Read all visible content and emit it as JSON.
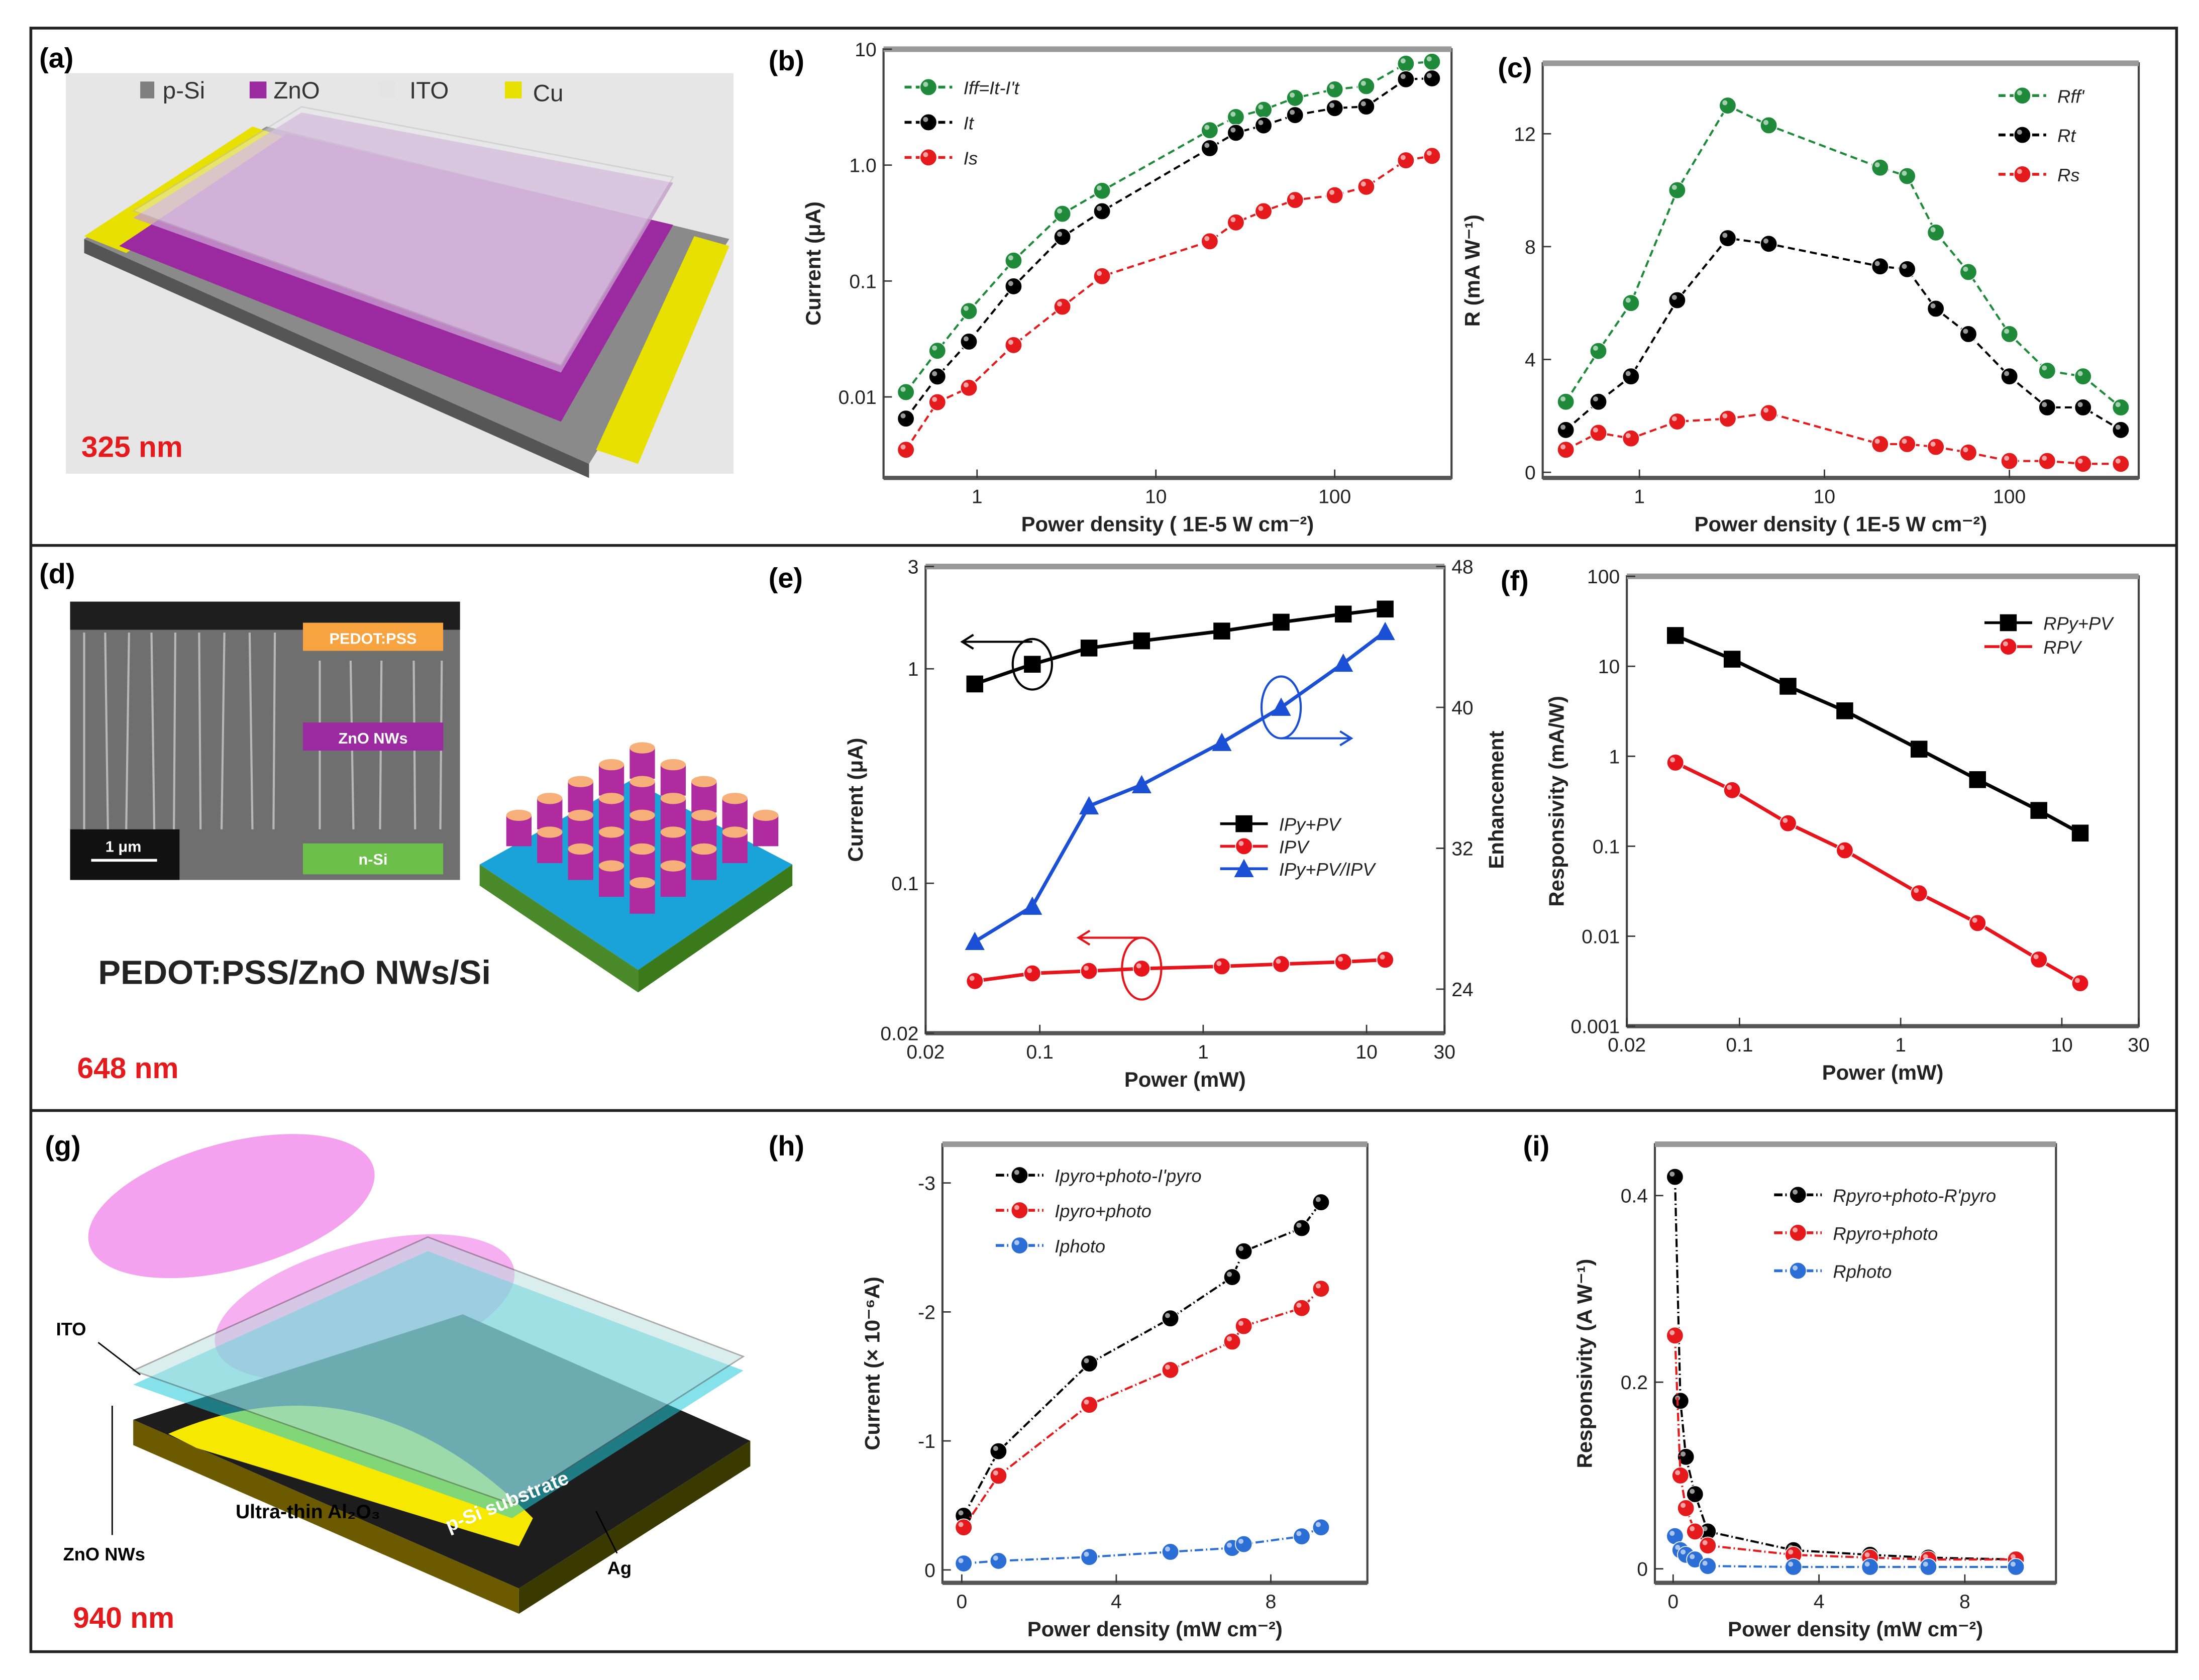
{
  "panels": {
    "a": {
      "label": "(a)",
      "legend": [
        "p-Si",
        "ZnO",
        "ITO",
        "Cu"
      ],
      "legend_colors": [
        "#7f7f7f",
        "#9b2aa0",
        "#e4e4e4",
        "#e8e000"
      ],
      "wavelength": "325 nm"
    },
    "d": {
      "label": "(d)",
      "layers": [
        "PEDOT:PSS",
        "ZnO NWs",
        "n-Si"
      ],
      "scale_bar": "1 μm",
      "title": "PEDOT:PSS/ZnO NWs/Si",
      "wavelength": "648 nm"
    },
    "g": {
      "label": "(g)",
      "labels": [
        "ITO",
        "ZnO NWs",
        "Ultra-thin Al₂O₃",
        "p-Si substrate",
        "Ag"
      ],
      "wavelength": "940 nm"
    }
  },
  "chart_data": [
    {
      "id": "b",
      "panel_label": "(b)",
      "type": "line",
      "xlabel": "Power density ( 1E-5 W cm⁻²)",
      "ylabel": "Current (μA)",
      "xscale": "log",
      "yscale": "log",
      "xlim": [
        0.3,
        450
      ],
      "ylim": [
        0.002,
        10
      ],
      "xticks": [
        1,
        10,
        100
      ],
      "xtick_labels": [
        "1",
        "10",
        "100"
      ],
      "yticks": [
        0.01,
        0.1,
        1,
        10
      ],
      "ytick_labels": [
        "0.01",
        "0.1",
        "1.0",
        "10"
      ],
      "legend": "top-left",
      "x": [
        0.4,
        0.6,
        0.9,
        1.6,
        3,
        5,
        20,
        28,
        40,
        60,
        100,
        150,
        250,
        350
      ],
      "series": [
        {
          "name": "Iff=It-I't",
          "color": "#1f8a3a",
          "marker": "circle",
          "dash": "5,3",
          "values": [
            0.011,
            0.025,
            0.055,
            0.15,
            0.38,
            0.6,
            2.0,
            2.6,
            3.0,
            3.8,
            4.5,
            4.8,
            7.5,
            7.8
          ]
        },
        {
          "name": "It",
          "color": "#000000",
          "marker": "circle",
          "dash": "5,3",
          "values": [
            0.0065,
            0.015,
            0.03,
            0.09,
            0.24,
            0.4,
            1.4,
            1.9,
            2.2,
            2.7,
            3.1,
            3.2,
            5.5,
            5.6
          ]
        },
        {
          "name": "Is",
          "color": "#e41a1c",
          "marker": "circle",
          "dash": "5,3",
          "values": [
            0.0035,
            0.009,
            0.012,
            0.028,
            0.06,
            0.11,
            0.22,
            0.32,
            0.4,
            0.5,
            0.55,
            0.65,
            1.1,
            1.2
          ]
        }
      ]
    },
    {
      "id": "c",
      "panel_label": "(c)",
      "type": "line",
      "xlabel": "Power density ( 1E-5 W cm⁻²)",
      "ylabel": "R (mA W⁻¹)",
      "xscale": "log",
      "yscale": "linear",
      "xlim": [
        0.3,
        500
      ],
      "ylim": [
        -0.2,
        14.5
      ],
      "xticks": [
        1,
        10,
        100
      ],
      "xtick_labels": [
        "1",
        "10",
        "100"
      ],
      "yticks": [
        0,
        4,
        8,
        12
      ],
      "ytick_labels": [
        "0",
        "4",
        "8",
        "12"
      ],
      "legend": "top-right",
      "x": [
        0.4,
        0.6,
        0.9,
        1.6,
        3,
        5,
        20,
        28,
        40,
        60,
        100,
        160,
        250,
        400
      ],
      "series": [
        {
          "name": "Rff'",
          "color": "#1f8a3a",
          "marker": "circle",
          "dash": "5,3",
          "values": [
            2.5,
            4.3,
            6,
            10,
            13,
            12.3,
            10.8,
            10.5,
            8.5,
            7.1,
            4.9,
            3.6,
            3.4,
            2.3
          ]
        },
        {
          "name": "Rt",
          "color": "#000000",
          "marker": "circle",
          "dash": "5,3",
          "values": [
            1.5,
            2.5,
            3.4,
            6.1,
            8.3,
            8.1,
            7.3,
            7.2,
            5.8,
            4.9,
            3.4,
            2.3,
            2.3,
            1.5
          ]
        },
        {
          "name": "Rs",
          "color": "#e41a1c",
          "marker": "circle",
          "dash": "5,3",
          "values": [
            0.8,
            1.4,
            1.2,
            1.8,
            1.9,
            2.1,
            1.0,
            1.0,
            0.9,
            0.7,
            0.4,
            0.4,
            0.3,
            0.3
          ]
        }
      ]
    },
    {
      "id": "e",
      "panel_label": "(e)",
      "type": "line",
      "xlabel": "Power (mW)",
      "ylabel": "Current (μA)",
      "y2label": "Enhancement",
      "xscale": "log",
      "yscale": "log",
      "xlim": [
        0.02,
        30
      ],
      "ylim": [
        0.02,
        3
      ],
      "y2lim": [
        21.5,
        48
      ],
      "xticks": [
        0.02,
        0.1,
        1,
        10,
        30
      ],
      "xtick_labels": [
        "0.02",
        "0.1",
        "1",
        "10",
        "30"
      ],
      "yticks": [
        0.02,
        0.1,
        1,
        3
      ],
      "ytick_labels": [
        "0.02",
        "0.1",
        "1",
        "3"
      ],
      "y2ticks": [
        24,
        32,
        40,
        48
      ],
      "y2tick_labels": [
        "24",
        "32",
        "40",
        "48"
      ],
      "legend": "center-right",
      "x": [
        0.04,
        0.09,
        0.2,
        0.42,
        1.3,
        3,
        7.2,
        13
      ],
      "series": [
        {
          "name": "IPy+PV",
          "color": "#000000",
          "marker": "square",
          "dash": "",
          "values": [
            0.85,
            1.05,
            1.25,
            1.35,
            1.5,
            1.65,
            1.8,
            1.9
          ]
        },
        {
          "name": "IPV",
          "color": "#e8141c",
          "marker": "circle",
          "dash": "",
          "values": [
            0.035,
            0.038,
            0.039,
            0.04,
            0.041,
            0.042,
            0.043,
            0.044
          ]
        },
        {
          "name": "IPy+PV/IPV",
          "color": "#1a4fd6",
          "marker": "triangle",
          "dash": "",
          "axis": "y2",
          "values": [
            26.7,
            28.7,
            34.4,
            35.6,
            38,
            40,
            42.5,
            44.3
          ]
        }
      ]
    },
    {
      "id": "f",
      "panel_label": "(f)",
      "type": "line",
      "xlabel": "Power (mW)",
      "ylabel": "Responsivity (mA/W)",
      "xscale": "log",
      "yscale": "log",
      "xlim": [
        0.02,
        30
      ],
      "ylim": [
        0.001,
        100
      ],
      "xticks": [
        0.02,
        0.1,
        1,
        10,
        30
      ],
      "xtick_labels": [
        "0.02",
        "0.1",
        "1",
        "10",
        "30"
      ],
      "yticks": [
        0.001,
        0.01,
        0.1,
        1,
        10,
        100
      ],
      "ytick_labels": [
        "0.001",
        "0.01",
        "0.1",
        "1",
        "10",
        "100"
      ],
      "legend": "top-right",
      "x": [
        0.04,
        0.09,
        0.2,
        0.45,
        1.3,
        3,
        7.2,
        13
      ],
      "series": [
        {
          "name": "RPy+PV",
          "color": "#000000",
          "marker": "square",
          "dash": "",
          "values": [
            22,
            12,
            6,
            3.2,
            1.2,
            0.55,
            0.25,
            0.14
          ]
        },
        {
          "name": "RPV",
          "color": "#e8141c",
          "marker": "circle",
          "dash": "",
          "values": [
            0.85,
            0.42,
            0.18,
            0.09,
            0.03,
            0.014,
            0.0055,
            0.003
          ]
        }
      ]
    },
    {
      "id": "h",
      "panel_label": "(h)",
      "type": "line",
      "xlabel": "Power density (mW cm⁻²)",
      "ylabel": "Current (× 10⁻⁶A)",
      "xscale": "linear",
      "yscale": "linear",
      "xlim": [
        -0.5,
        10.5
      ],
      "ylim": [
        0.1,
        -3.3
      ],
      "xticks": [
        0,
        4,
        8
      ],
      "xtick_labels": [
        "0",
        "4",
        "8"
      ],
      "yticks": [
        0,
        -1,
        -2,
        -3
      ],
      "ytick_labels": [
        "0",
        "-1",
        "-2",
        "-3"
      ],
      "legend": "top-left",
      "x": [
        0.05,
        0.95,
        3.3,
        5.4,
        7.0,
        7.3,
        8.8,
        9.3
      ],
      "series": [
        {
          "name": "Ipyro+photo-I'pyro",
          "color": "#000000",
          "marker": "circle",
          "dash": "6,2,1,2",
          "values": [
            -0.42,
            -0.92,
            -1.6,
            -1.95,
            -2.27,
            -2.47,
            -2.65,
            -2.85
          ]
        },
        {
          "name": "Ipyro+photo",
          "color": "#e41a1c",
          "marker": "circle",
          "dash": "6,2,1,2",
          "values": [
            -0.33,
            -0.73,
            -1.28,
            -1.55,
            -1.77,
            -1.89,
            -2.03,
            -2.18
          ]
        },
        {
          "name": "Iphoto",
          "color": "#2b6fd6",
          "marker": "circle",
          "dash": "6,2,1,2",
          "values": [
            -0.05,
            -0.07,
            -0.1,
            -0.14,
            -0.17,
            -0.2,
            -0.26,
            -0.33
          ]
        }
      ]
    },
    {
      "id": "i",
      "panel_label": "(i)",
      "type": "line",
      "xlabel": "Power density (mW cm⁻²)",
      "ylabel": "Responsivity (A W⁻¹)",
      "xscale": "linear",
      "yscale": "linear",
      "xlim": [
        -0.5,
        10.5
      ],
      "ylim": [
        -0.015,
        0.455
      ],
      "xticks": [
        0,
        4,
        8
      ],
      "xtick_labels": [
        "0",
        "4",
        "8"
      ],
      "yticks": [
        0,
        0.2,
        0.4
      ],
      "ytick_labels": [
        "0",
        "0.2",
        "0.4"
      ],
      "legend": "top-right",
      "x": [
        0.05,
        0.2,
        0.35,
        0.6,
        0.95,
        3.3,
        5.4,
        7.0,
        9.4
      ],
      "series": [
        {
          "name": "Rpyro+photo-R'pyro",
          "color": "#000000",
          "marker": "circle",
          "dash": "6,2,1,2",
          "values": [
            0.42,
            0.18,
            0.12,
            0.08,
            0.04,
            0.02,
            0.015,
            0.012,
            0.01
          ]
        },
        {
          "name": "Rpyro+photo",
          "color": "#e41a1c",
          "marker": "circle",
          "dash": "6,2,1,2",
          "values": [
            0.25,
            0.1,
            0.065,
            0.04,
            0.025,
            0.015,
            0.012,
            0.01,
            0.01
          ]
        },
        {
          "name": "Rphoto",
          "color": "#2b6fd6",
          "marker": "circle",
          "dash": "6,2,1,2",
          "values": [
            0.035,
            0.02,
            0.015,
            0.01,
            0.003,
            0.002,
            0.002,
            0.002,
            0.002
          ]
        }
      ]
    }
  ]
}
